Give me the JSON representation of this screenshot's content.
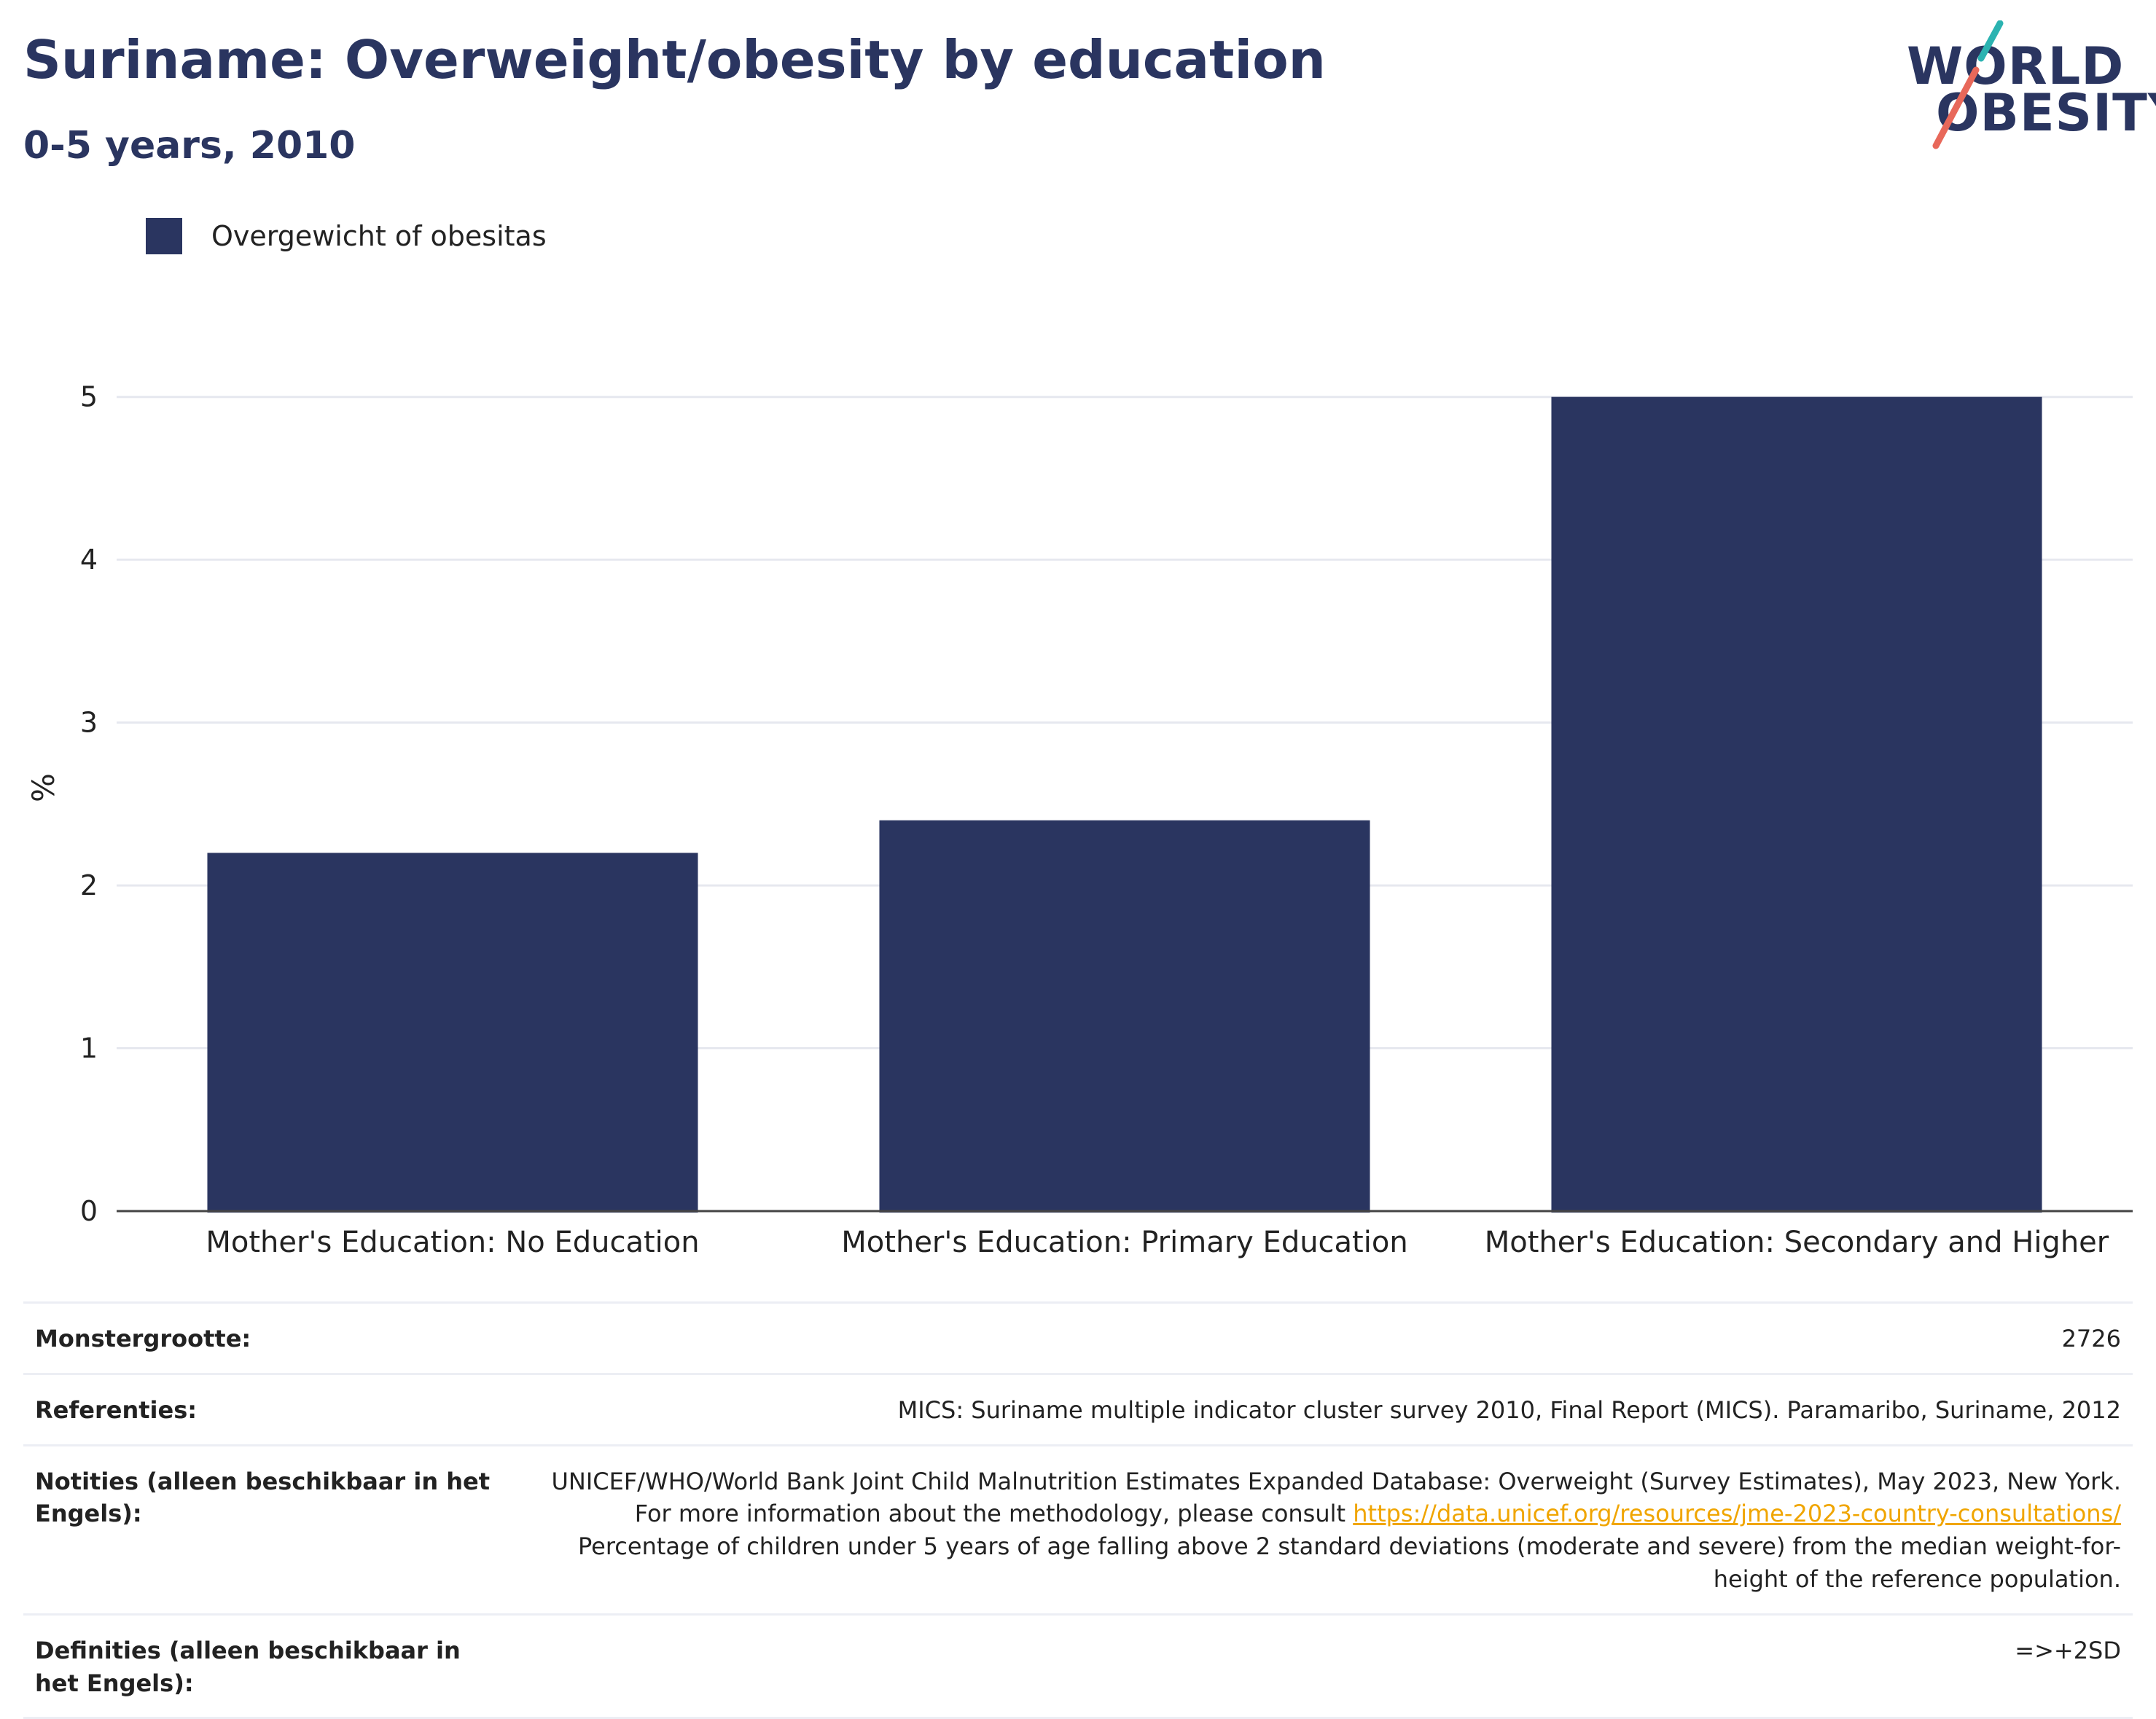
{
  "title": "Suriname: Overweight/obesity by education",
  "subtitle": "0-5 years, 2010",
  "logo": {
    "line1": "WORLD",
    "line2": "OBESITY"
  },
  "colors": {
    "bar": "#2a3560",
    "title": "#2a3560",
    "link": "#f0a500",
    "logo_teal": "#2bb3b1",
    "logo_coral": "#e8685a"
  },
  "chart_data": {
    "type": "bar",
    "categories": [
      "Mother's Education: No Education",
      "Mother's Education: Primary Education",
      "Mother's Education: Secondary and Higher"
    ],
    "series": [
      {
        "name": "Overgewicht of obesitas",
        "values": [
          2.2,
          2.4,
          5.0
        ]
      }
    ],
    "ylabel": "%",
    "ylim": [
      0,
      5.2
    ],
    "yticks": [
      0,
      1,
      2,
      3,
      4,
      5
    ],
    "grid": true,
    "legend_position": "top-left"
  },
  "info": {
    "sample_label": "Monstergrootte:",
    "sample_value": "2726",
    "refs_label": "Referenties:",
    "refs_value": "MICS: Suriname multiple indicator cluster survey 2010, Final Report (MICS). Paramaribo, Suriname, 2012",
    "notes_label": "Notities (alleen beschikbaar in het Engels):",
    "notes_line1": "UNICEF/WHO/World Bank Joint Child Malnutrition Estimates Expanded Database: Overweight (Survey Estimates), May 2023, New York. For more information about the methodology, please consult",
    "notes_link": "https://data.unicef.org/resources/jme-2023-country-consultations/",
    "notes_line2": "Percentage of children under 5 years of age falling above 2 standard deviations (moderate and severe) from the median weight-for-height of the reference population.",
    "defs_label": "Definities (alleen beschikbaar in het Engels):",
    "defs_value": "=>+2SD"
  }
}
